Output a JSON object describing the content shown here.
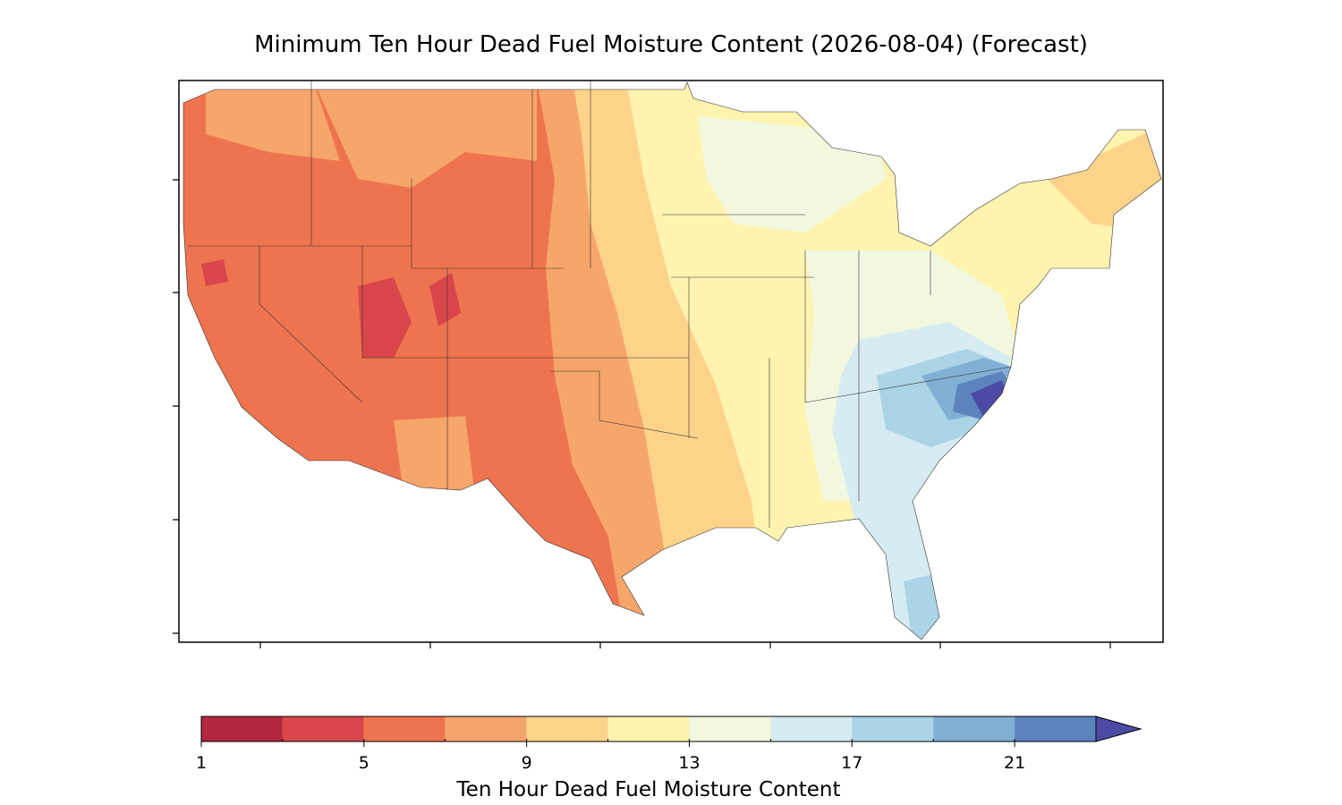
{
  "chart_data": {
    "type": "contour-map",
    "title": "Minimum Ten Hour Dead Fuel Moisture Content (2026-08-04) (Forecast)",
    "colorbar_label": "Ten Hour Dead Fuel Moisture Content",
    "levels": [
      1,
      3,
      5,
      7,
      9,
      11,
      13,
      15,
      17,
      19,
      21,
      23
    ],
    "colors": [
      "#b22640",
      "#d8464b",
      "#ee744f",
      "#f7a66b",
      "#fdd38a",
      "#fff3b0",
      "#f1f8df",
      "#d6ecf2",
      "#abd4e6",
      "#81b0d4",
      "#5d83be",
      "#4d4aa5"
    ],
    "extend": "max",
    "ticks": [
      1,
      5,
      9,
      13,
      17,
      21
    ]
  }
}
